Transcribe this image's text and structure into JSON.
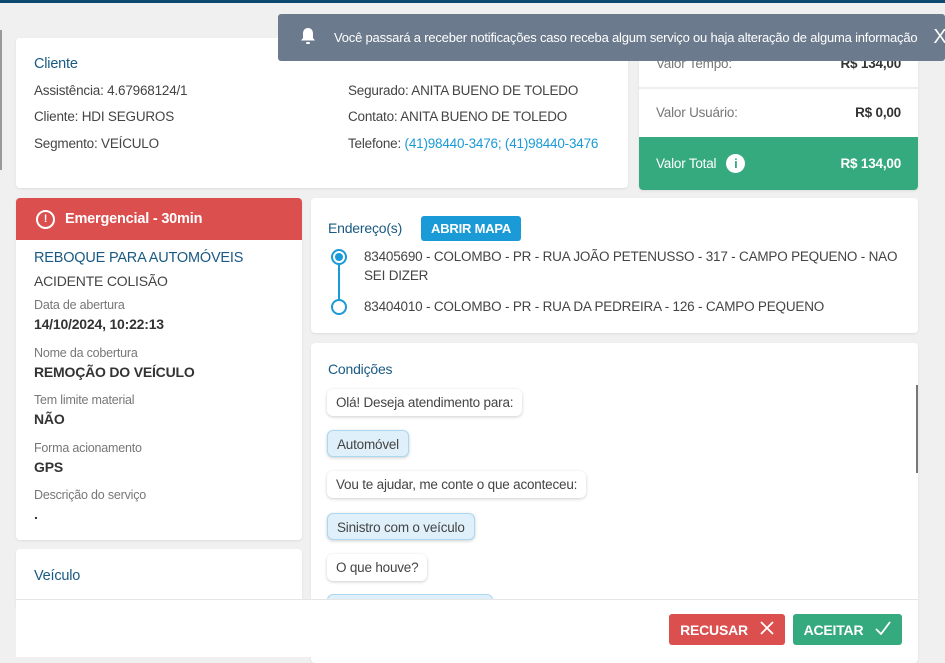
{
  "toast": {
    "icon": "bell-icon",
    "message": "Você passará a receber notificações caso receba algum serviço ou haja alteração de alguma informação",
    "close": "X"
  },
  "client": {
    "title": "Cliente",
    "assistencia": "Assistência: 4.67968124/1",
    "cliente": "Cliente: HDI SEGUROS",
    "segmento": "Segmento: VEÍCULO",
    "segurado": "Segurado: ANITA BUENO DE TOLEDO",
    "contato": "Contato: ANITA BUENO DE TOLEDO",
    "telefone_label": "Telefone: ",
    "telefone": "(41)98440-3476; (41)98440-3476"
  },
  "values": {
    "tempo_label": "Valor Tempo:",
    "tempo": "R$ 134,00",
    "usuario_label": "Valor Usuário:",
    "usuario": "R$ 0,00",
    "total_label": "Valor Total",
    "total": "R$ 134,00",
    "total_color": "#35aa7e"
  },
  "service": {
    "badge": "Emergencial - 30min",
    "badge_color": "#dc4f4f",
    "name": "REBOQUE PARA AUTOMÓVEIS",
    "sub": "ACIDENTE COLISÃO",
    "fields": [
      {
        "label": "Data de abertura",
        "value": "14/10/2024, 10:22:13"
      },
      {
        "label": "Nome da cobertura",
        "value": "REMOÇÃO DO VEÍCULO"
      },
      {
        "label": "Tem limite material",
        "value": "NÃO"
      },
      {
        "label": "Forma acionamento",
        "value": "GPS"
      },
      {
        "label": "Descrição do serviço",
        "value": "."
      }
    ]
  },
  "vehicle": {
    "title": "Veículo"
  },
  "address": {
    "title": "Endereço(s)",
    "map_button": "ABRIR MAPA",
    "items": [
      "83405690 - COLOMBO - PR - RUA JOÃO PETENUSSO - 317 - CAMPO PEQUENO - NAO SEI DIZER",
      "83404010 - COLOMBO - PR - RUA DA PEDREIRA - 126 - CAMPO PEQUENO"
    ]
  },
  "conditions": {
    "title": "Condições",
    "messages": [
      {
        "text": "Olá! Deseja atendimento para:",
        "answer": false
      },
      {
        "text": "Automóvel",
        "answer": true
      },
      {
        "text": "Vou te ajudar, me conte o que aconteceu:",
        "answer": false
      },
      {
        "text": "Sinistro com o veículo",
        "answer": true
      },
      {
        "text": "O que houve?",
        "answer": false
      }
    ]
  },
  "footer": {
    "refuse": "RECUSAR",
    "accept": "ACEITAR"
  }
}
